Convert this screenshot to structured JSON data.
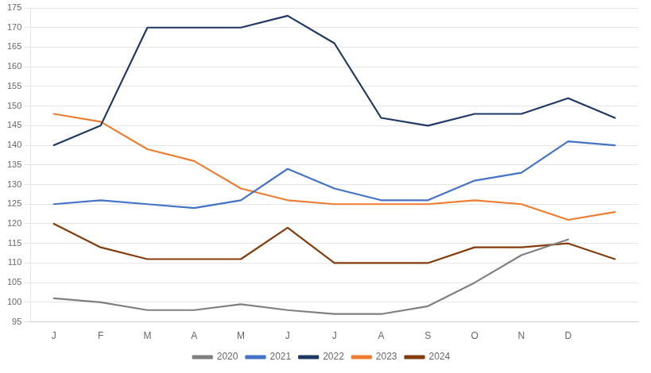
{
  "chart_data": {
    "type": "line",
    "categories": [
      "J",
      "F",
      "M",
      "A",
      "M",
      "J",
      "J",
      "A",
      "S",
      "O",
      "N",
      "D",
      null
    ],
    "series": [
      {
        "name": "2020",
        "color": "#808080",
        "values": [
          101,
          100,
          98,
          98,
          99.5,
          98,
          97,
          97,
          99,
          105,
          112,
          116,
          null
        ]
      },
      {
        "name": "2021",
        "color": "#4472C4",
        "values": [
          125,
          126,
          125,
          124,
          126,
          134,
          129,
          126,
          126,
          131,
          133,
          141,
          140
        ]
      },
      {
        "name": "2022",
        "color": "#1F3864",
        "values": [
          140,
          145,
          170,
          170,
          170,
          173,
          166,
          147,
          145,
          148,
          148,
          152,
          147
        ]
      },
      {
        "name": "2023",
        "color": "#ED7D31",
        "values": [
          148,
          146,
          139,
          136,
          129,
          126,
          125,
          125,
          125,
          126,
          125,
          121,
          123
        ]
      },
      {
        "name": "2024",
        "color": "#843C0C",
        "values": [
          120,
          114,
          111,
          111,
          111,
          119,
          110,
          110,
          110,
          114,
          114,
          115,
          111
        ]
      }
    ],
    "ylim": [
      95,
      175
    ],
    "yticks": [
      95,
      100,
      105,
      110,
      115,
      120,
      125,
      130,
      135,
      140,
      145,
      150,
      155,
      160,
      165,
      170,
      175
    ],
    "grid": "y",
    "legend": "bottom"
  }
}
